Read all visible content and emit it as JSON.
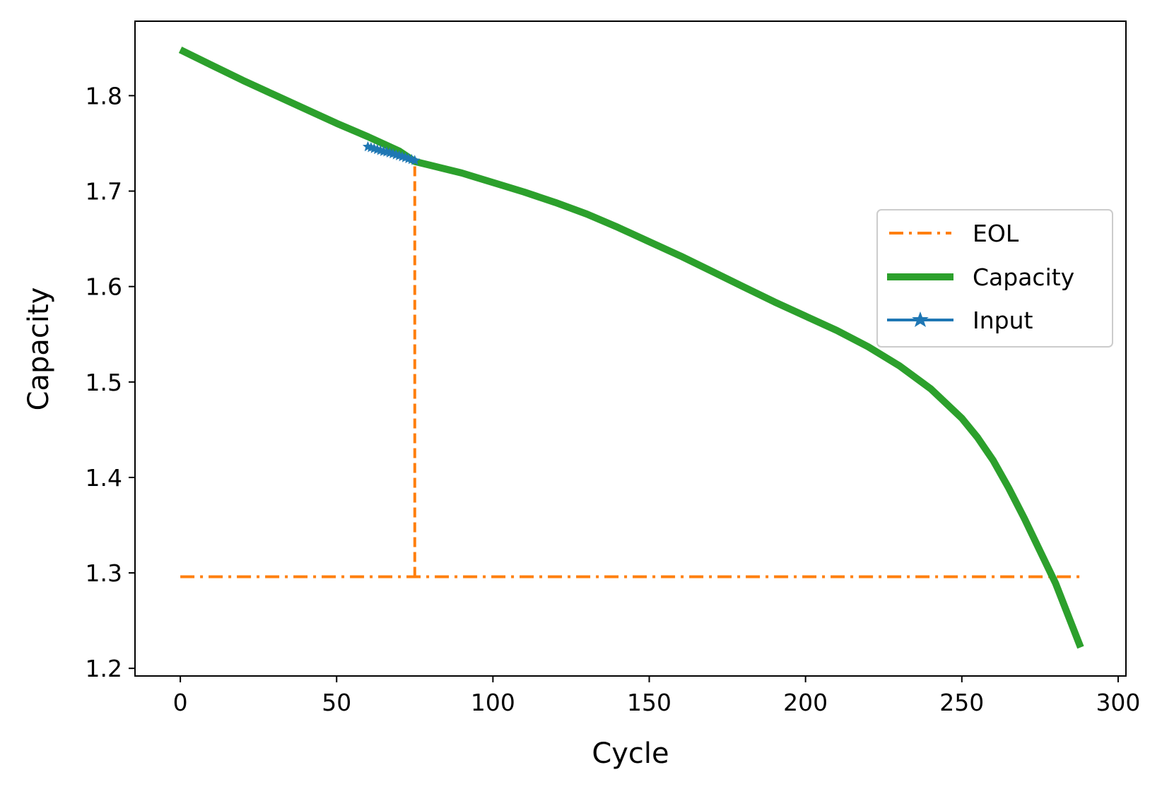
{
  "chart_data": {
    "type": "line",
    "xlabel": "Cycle",
    "ylabel": "Capacity",
    "xlim": [
      -14.5,
      302.5
    ],
    "ylim": [
      1.192,
      1.878
    ],
    "xticks": [
      0,
      50,
      100,
      150,
      200,
      250,
      300
    ],
    "yticks": [
      1.2,
      1.3,
      1.4,
      1.5,
      1.6,
      1.7,
      1.8
    ],
    "xtick_labels": [
      "0",
      "50",
      "100",
      "150",
      "200",
      "250",
      "300"
    ],
    "ytick_labels": [
      "1.2",
      "1.3",
      "1.4",
      "1.5",
      "1.6",
      "1.7",
      "1.8"
    ],
    "grid": false,
    "legend_position": "center-right",
    "series": [
      {
        "name": "EOL",
        "style": "dash-dot",
        "color": "#ff7f0e",
        "x": [
          0,
          288
        ],
        "y": [
          1.296,
          1.296
        ]
      },
      {
        "name": "Capacity",
        "style": "solid-thick",
        "color": "#2ca02c",
        "x": [
          0,
          10,
          20,
          30,
          40,
          50,
          60,
          70,
          75,
          80,
          90,
          100,
          110,
          120,
          130,
          140,
          150,
          160,
          170,
          180,
          190,
          200,
          210,
          220,
          230,
          240,
          250,
          255,
          260,
          265,
          270,
          275,
          280,
          288
        ],
        "y": [
          1.848,
          1.832,
          1.816,
          1.801,
          1.786,
          1.771,
          1.757,
          1.742,
          1.731,
          1.727,
          1.719,
          1.709,
          1.699,
          1.688,
          1.676,
          1.662,
          1.647,
          1.632,
          1.616,
          1.6,
          1.584,
          1.569,
          1.554,
          1.537,
          1.517,
          1.493,
          1.462,
          1.442,
          1.418,
          1.389,
          1.357,
          1.323,
          1.289,
          1.222
        ]
      },
      {
        "name": "Input",
        "style": "solid-star-markers",
        "color": "#1f77b4",
        "x": [
          60,
          61,
          62,
          63,
          64,
          65,
          66,
          67,
          68,
          69,
          70,
          71,
          72,
          73,
          74,
          75
        ],
        "y": [
          1.7465,
          1.7455,
          1.7445,
          1.7435,
          1.7425,
          1.7415,
          1.741,
          1.74,
          1.739,
          1.738,
          1.737,
          1.736,
          1.735,
          1.734,
          1.733,
          1.732
        ]
      }
    ],
    "annotations": [
      {
        "kind": "vertical-dashed-line",
        "color": "#ff7f0e",
        "x": 75,
        "y_from": 1.296,
        "y_to": 1.731
      }
    ]
  }
}
